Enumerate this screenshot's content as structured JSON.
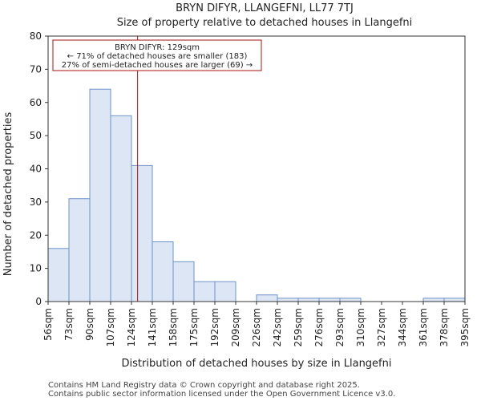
{
  "chart_data": {
    "type": "bar",
    "title_line1": "BRYN DIFYR, LLANGEFNI, LL77 7TJ",
    "title_line2": "Size of property relative to detached houses in Llangefni",
    "xlabel": "Distribution of detached houses by size in Llangefni",
    "ylabel": "Number of detached properties",
    "edges": [
      56,
      73,
      90,
      107,
      124,
      141,
      158,
      175,
      192,
      209,
      226,
      242,
      259,
      276,
      293,
      310,
      327,
      344,
      361,
      378,
      395
    ],
    "tick_labels": [
      "56sqm",
      "73sqm",
      "90sqm",
      "107sqm",
      "124sqm",
      "141sqm",
      "158sqm",
      "175sqm",
      "192sqm",
      "209sqm",
      "226sqm",
      "242sqm",
      "259sqm",
      "276sqm",
      "293sqm",
      "310sqm",
      "327sqm",
      "344sqm",
      "361sqm",
      "378sqm",
      "395sqm"
    ],
    "values": [
      16,
      31,
      64,
      56,
      41,
      18,
      12,
      6,
      6,
      0,
      2,
      1,
      1,
      1,
      1,
      0,
      0,
      0,
      1,
      1
    ],
    "ylim": [
      0,
      80
    ],
    "yticks": [
      0,
      10,
      20,
      30,
      40,
      50,
      60,
      70,
      80
    ],
    "grid": false,
    "bar_color": "#dce6f5",
    "bar_edge_color": "#6f93c8",
    "marker": {
      "value": 129,
      "color": "#aa1111",
      "lines": [
        "BRYN DIFYR: 129sqm",
        "← 71% of detached houses are smaller (183)",
        "27% of semi-detached houses are larger (69) →"
      ]
    }
  },
  "footer": {
    "line1": "Contains HM Land Registry data © Crown copyright and database right 2025.",
    "line2": "Contains public sector information licensed under the Open Government Licence v3.0."
  }
}
